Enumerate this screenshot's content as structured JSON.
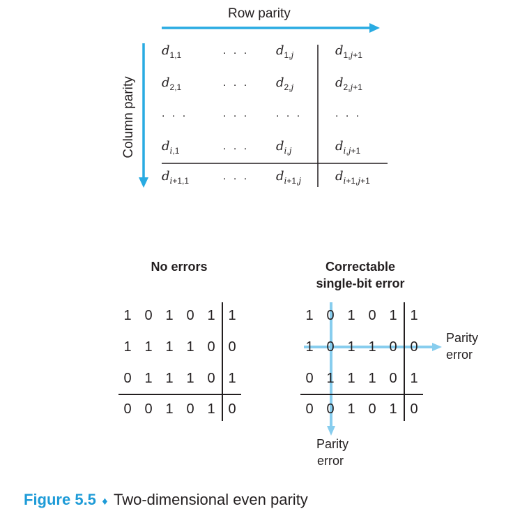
{
  "top_diagram": {
    "row_parity_label": "Row parity",
    "column_parity_label": "Column parity",
    "rows": [
      [
        {
          "base": "d",
          "sub": "1,1"
        },
        {
          "dots": ". . ."
        },
        {
          "base": "d",
          "sub": "1,",
          "subi": "j"
        },
        {
          "base": "d",
          "sub": "1,",
          "subi": "j",
          "sub2": "+1"
        }
      ],
      [
        {
          "base": "d",
          "sub": "2,1"
        },
        {
          "dots": ". . ."
        },
        {
          "base": "d",
          "sub": "2,",
          "subi": "j"
        },
        {
          "base": "d",
          "sub": "2,",
          "subi": "j",
          "sub2": "+1"
        }
      ],
      [
        {
          "dots": ". . ."
        },
        {
          "dots": ". . ."
        },
        {
          "dots": ". . ."
        },
        {
          "dots": ". . ."
        }
      ],
      [
        {
          "base": "d",
          "subi": "i",
          "sub2": ",1"
        },
        {
          "dots": ". . ."
        },
        {
          "base": "d",
          "subi": "i",
          "sub2": ",",
          "subj": "j"
        },
        {
          "base": "d",
          "subi": "i",
          "sub2": ",",
          "subj": "j",
          "sub3": "+1"
        }
      ],
      [
        {
          "base": "d",
          "subi": "i",
          "sub2": "+1,1"
        },
        {
          "dots": ". . ."
        },
        {
          "base": "d",
          "subi": "i",
          "sub2": "+1,",
          "subj": "j"
        },
        {
          "base": "d",
          "subi": "i",
          "sub2": "+1,",
          "subj": "j",
          "sub3": "+1"
        }
      ]
    ]
  },
  "no_errors": {
    "heading": "No errors",
    "rows": [
      [
        "1",
        "0",
        "1",
        "0",
        "1",
        "1"
      ],
      [
        "1",
        "1",
        "1",
        "1",
        "0",
        "0"
      ],
      [
        "0",
        "1",
        "1",
        "1",
        "0",
        "1"
      ],
      [
        "0",
        "0",
        "1",
        "0",
        "1",
        "0"
      ]
    ]
  },
  "correctable": {
    "heading_line1": "Correctable",
    "heading_line2": "single-bit error",
    "rows": [
      [
        "1",
        "0",
        "1",
        "0",
        "1",
        "1"
      ],
      [
        "1",
        "0",
        "1",
        "1",
        "0",
        "0"
      ],
      [
        "0",
        "1",
        "1",
        "1",
        "0",
        "1"
      ],
      [
        "0",
        "0",
        "1",
        "0",
        "1",
        "0"
      ]
    ],
    "row_error_label_line1": "Parity",
    "row_error_label_line2": "error",
    "col_error_label_line1": "Parity",
    "col_error_label_line2": "error"
  },
  "caption": {
    "figure": "Figure 5.5",
    "bullet": "♦",
    "text": "Two-dimensional even parity"
  },
  "colors": {
    "accent": "#1e9bd7",
    "arrow": "#29abe2",
    "highlight": "#87cdee",
    "text": "#231f20"
  }
}
